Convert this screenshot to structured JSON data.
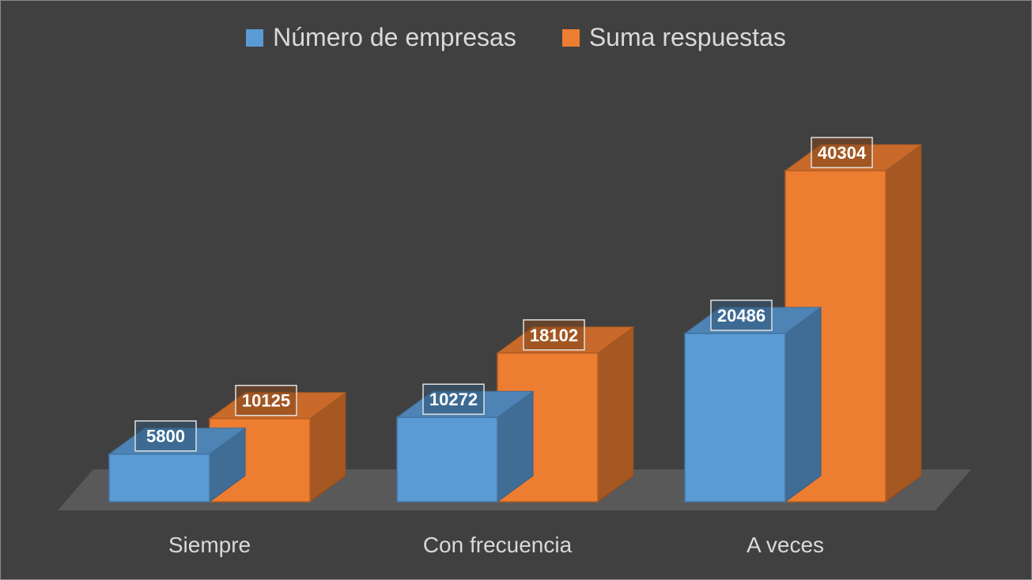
{
  "chart_data": {
    "type": "bar",
    "style": "3d-clustered-column",
    "categories": [
      "Siempre",
      "Con frecuencia",
      "A veces"
    ],
    "series": [
      {
        "name": "Número de empresas",
        "values": [
          5800,
          10272,
          20486
        ],
        "color": "#5b9bd5"
      },
      {
        "name": "Suma respuestas",
        "values": [
          10125,
          18102,
          40304
        ],
        "color": "#ed7d31"
      }
    ],
    "ylim": [
      0,
      40304
    ],
    "grid": false,
    "legend_position": "top",
    "background": "#404040"
  }
}
